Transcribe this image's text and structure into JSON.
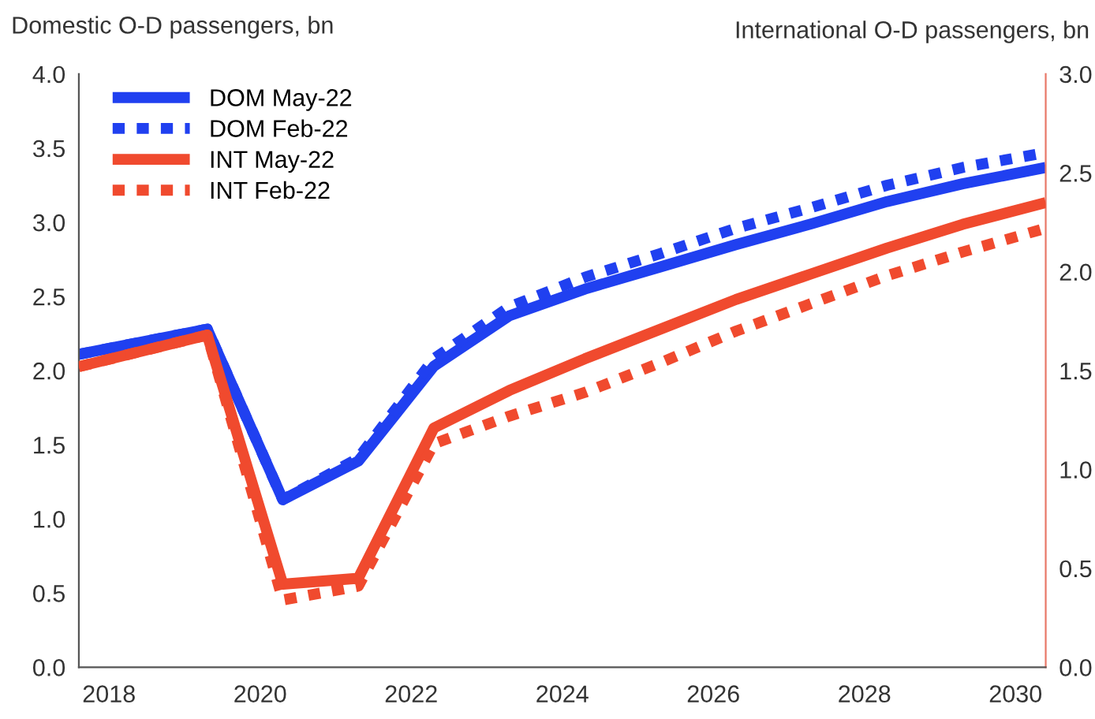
{
  "chart_data": {
    "type": "line",
    "ylabel": "Domestic O-D passengers, bn",
    "y2label": "International O-D passengers, bn",
    "x": [
      2017.6,
      2019.3,
      2020.3,
      2021.3,
      2022.3,
      2023.3,
      2024.3,
      2025.3,
      2026.3,
      2027.3,
      2028.3,
      2029.3,
      2030.4
    ],
    "series": [
      {
        "name": "DOM May-22",
        "color": "#2040f0",
        "line_style": "solid",
        "values": [
          2.11,
          2.28,
          1.13,
          1.39,
          2.03,
          2.37,
          2.55,
          2.7,
          2.85,
          2.99,
          3.14,
          3.26,
          3.37
        ]
      },
      {
        "name": "DOM Feb-22",
        "color": "#2040f0",
        "line_style": "dotted",
        "values": [
          2.11,
          2.28,
          1.13,
          1.41,
          2.08,
          2.43,
          2.63,
          2.79,
          2.96,
          3.1,
          3.25,
          3.37,
          3.47
        ]
      },
      {
        "name": "INT May-22",
        "color": "#f04a2e",
        "line_style": "solid",
        "axis": "y2",
        "values": [
          1.52,
          1.68,
          0.42,
          0.45,
          1.21,
          1.4,
          1.56,
          1.71,
          1.86,
          1.99,
          2.12,
          2.24,
          2.35
        ]
      },
      {
        "name": "INT Feb-22",
        "color": "#f04a2e",
        "line_style": "dotted",
        "axis": "y2",
        "values": [
          1.52,
          1.68,
          0.34,
          0.41,
          1.13,
          1.27,
          1.39,
          1.54,
          1.7,
          1.84,
          1.98,
          2.1,
          2.22
        ]
      }
    ],
    "xlim": [
      2017.6,
      2030.4
    ],
    "xticks": [
      2018,
      2020,
      2022,
      2024,
      2026,
      2028,
      2030
    ],
    "ylim": [
      0,
      4.0
    ],
    "yticks": [
      {
        "value": 0,
        "label": "0.0"
      },
      0.5,
      {
        "value": 1,
        "label": "1.0"
      },
      1.5,
      {
        "value": 2,
        "label": "2.0"
      },
      2.5,
      {
        "value": 3,
        "label": "3.0"
      },
      3.5,
      {
        "value": 4,
        "label": "4.0"
      }
    ],
    "y2lim": [
      0,
      3.0
    ],
    "y2ticks": [
      {
        "value": 0,
        "label": "0.0"
      },
      0.5,
      {
        "value": 1,
        "label": "1.0"
      },
      1.5,
      {
        "value": 2,
        "label": "2.0"
      },
      2.5,
      {
        "value": 3,
        "label": "3.0"
      }
    ],
    "grid": false,
    "legend": "top left",
    "marker": "none"
  }
}
